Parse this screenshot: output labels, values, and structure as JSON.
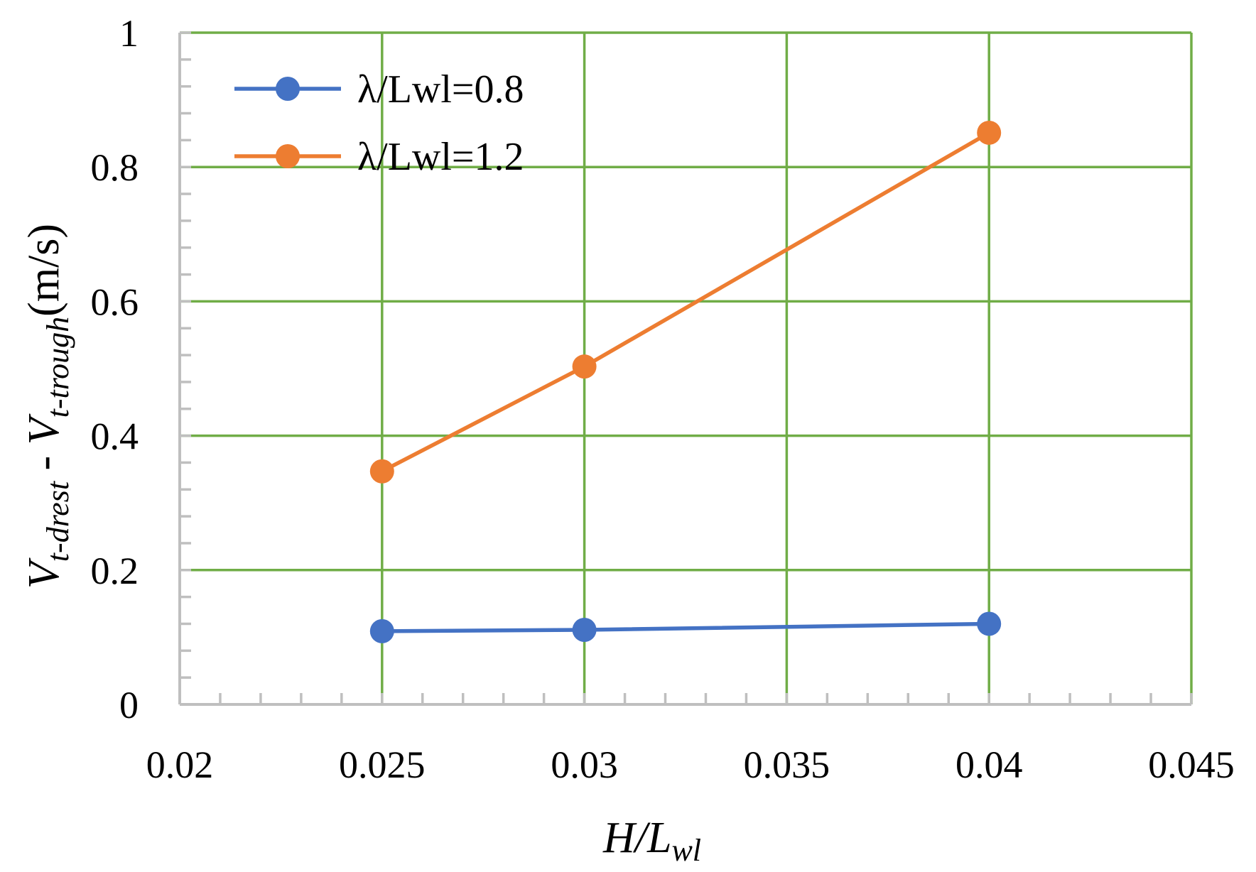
{
  "chart_data": {
    "type": "line",
    "xlabel": {
      "main": "H/L",
      "sub": "wl"
    },
    "ylabel": {
      "v1": "V",
      "v1_sub": "t-drest",
      "dash": " - ",
      "v2": "V",
      "v2_sub": "t-trough",
      "unit": "(m/s)"
    },
    "xlim": [
      0.02,
      0.045
    ],
    "ylim": [
      0,
      1
    ],
    "x_ticks": [
      0.02,
      0.025,
      0.03,
      0.035,
      0.04,
      0.045
    ],
    "x_tick_labels": [
      "0.02",
      "0.025",
      "0.03",
      "0.035",
      "0.04",
      "0.045"
    ],
    "y_ticks": [
      0,
      0.2,
      0.4,
      0.6,
      0.8,
      1
    ],
    "y_tick_labels": [
      "0",
      "0.2",
      "0.4",
      "0.6",
      "0.8",
      "1"
    ],
    "y_minor_step": 0.04,
    "x_minor_step": 0.001,
    "grid": true,
    "legend_position": "top-left",
    "series": [
      {
        "name": "λ/Lwl=0.8",
        "color": "#4472C4",
        "x": [
          0.025,
          0.03,
          0.04
        ],
        "y": [
          0.109,
          0.111,
          0.12
        ]
      },
      {
        "name": "λ/Lwl=1.2",
        "color": "#ED7D31",
        "x": [
          0.025,
          0.03,
          0.04
        ],
        "y": [
          0.347,
          0.503,
          0.851
        ]
      }
    ],
    "grid_color": "#70AD47",
    "axis_color": "#BFBFBF"
  }
}
